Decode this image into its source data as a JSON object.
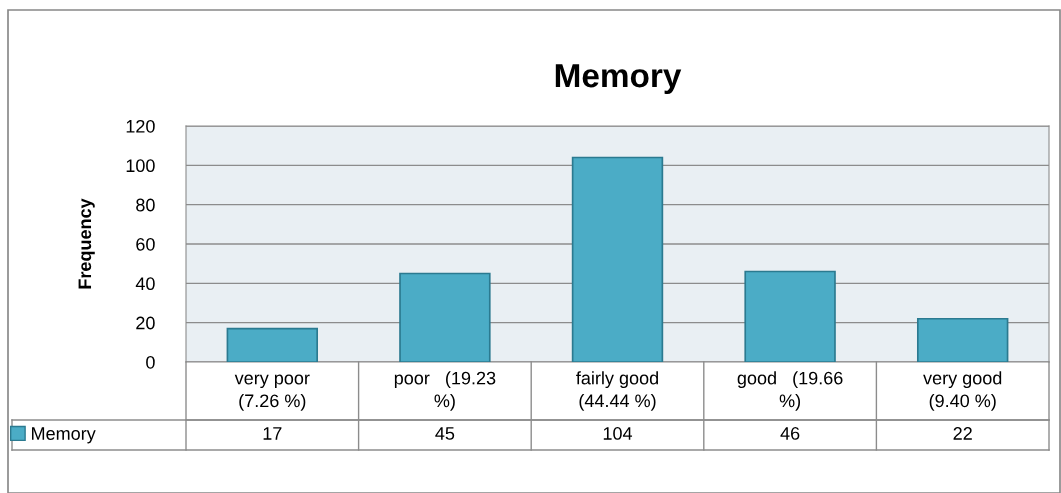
{
  "chart_data": {
    "type": "bar",
    "title": "Memory",
    "ylabel": "Frequency",
    "categories": [
      "very poor\n(7.26 %)",
      "poor   (19.23\n%)",
      "fairly good\n(44.44 %)",
      "good   (19.66\n%)",
      "very good\n(9.40 %)"
    ],
    "series": [
      {
        "name": "Memory",
        "color": "#4bacc6",
        "values": [
          17,
          45,
          104,
          46,
          22
        ]
      }
    ],
    "ylim": [
      0,
      120
    ],
    "yticks": [
      0,
      20,
      40,
      60,
      80,
      100,
      120
    ],
    "grid": "y",
    "legend": "bottom left",
    "data_labels": true
  }
}
